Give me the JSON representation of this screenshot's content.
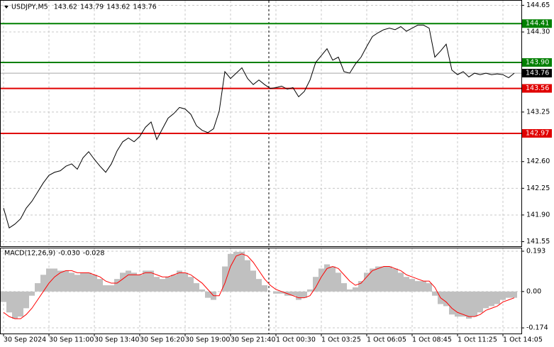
{
  "chart_data": [
    {
      "type": "line",
      "title": "USDJPY,M5",
      "ohlc": [
        143.62,
        143.79,
        143.62,
        143.76
      ],
      "color": "#000000",
      "ylim": [
        141.49,
        144.71
      ],
      "yticks": [
        144.65,
        {
          "value": 144.3,
          "label": "144.30"
        },
        143.25,
        {
          "value": 142.6,
          "label": "142.60"
        },
        142.25,
        {
          "value": 141.9,
          "label": "141.90"
        },
        141.55
      ],
      "grid": true,
      "categories": [
        "30 Sep 2024",
        null,
        null,
        null,
        null,
        null,
        null,
        null,
        "30 Sep 11:00",
        null,
        null,
        null,
        null,
        null,
        null,
        null,
        "30 Sep 13:40",
        null,
        null,
        null,
        null,
        null,
        null,
        null,
        "30 Sep 16:20",
        null,
        null,
        null,
        null,
        null,
        null,
        null,
        "30 Sep 19:00",
        null,
        null,
        null,
        null,
        null,
        null,
        null,
        "30 Sep 21:40",
        null,
        null,
        null,
        null,
        null,
        null,
        null,
        "1 Oct 00:30",
        null,
        null,
        null,
        null,
        null,
        null,
        null,
        "1 Oct 03:25",
        null,
        null,
        null,
        null,
        null,
        null,
        null,
        "1 Oct 06:05",
        null,
        null,
        null,
        null,
        null,
        null,
        null,
        "1 Oct 08:45",
        null,
        null,
        null,
        null,
        null,
        null,
        null,
        "1 Oct 11:25",
        null,
        null,
        null,
        null,
        null,
        null,
        null,
        "1 Oct 14:05",
        null,
        null
      ],
      "values": [
        141.99,
        141.73,
        141.78,
        141.85,
        141.99,
        142.08,
        142.2,
        142.32,
        142.42,
        142.46,
        142.48,
        142.54,
        142.57,
        142.5,
        142.65,
        142.73,
        142.63,
        142.54,
        142.46,
        142.57,
        142.74,
        142.86,
        142.91,
        142.86,
        142.93,
        143.05,
        143.12,
        142.89,
        143.03,
        143.17,
        143.23,
        143.31,
        143.29,
        143.22,
        143.07,
        143.01,
        142.98,
        143.03,
        143.26,
        143.78,
        143.69,
        143.76,
        143.83,
        143.69,
        143.61,
        143.67,
        143.61,
        143.56,
        143.57,
        143.59,
        143.55,
        143.57,
        143.45,
        143.52,
        143.67,
        143.9,
        143.99,
        144.08,
        143.93,
        143.97,
        143.78,
        143.76,
        143.88,
        143.97,
        144.11,
        144.24,
        144.29,
        144.33,
        144.35,
        144.33,
        144.37,
        144.31,
        144.35,
        144.39,
        144.39,
        144.35,
        143.97,
        144.05,
        144.14,
        143.8,
        143.74,
        143.78,
        143.71,
        143.76,
        143.74,
        143.76,
        143.74,
        143.75,
        143.74,
        143.7,
        143.76
      ],
      "levels": [
        {
          "value": 144.41,
          "color": "#008000"
        },
        {
          "value": 143.9,
          "label": "143.90",
          "color": "#008000"
        },
        {
          "value": 143.76,
          "color": "#a8a8a8",
          "box": "#000000"
        },
        {
          "value": 143.56,
          "color": "#e00000"
        },
        {
          "value": 142.97,
          "color": "#e00000"
        }
      ]
    },
    {
      "type": "macd",
      "title": "MACD(12,26,9)",
      "ylim": [
        -0.201,
        0.21
      ],
      "yticks": [
        0.193,
        {
          "value": 0,
          "label": "0.00"
        },
        -0.174
      ],
      "series": [
        {
          "type": "bar",
          "color": "#c0c0c0",
          "current": {
            "value": -0.03,
            "label": "-0.030"
          },
          "values": [
            -0.05,
            -0.1,
            -0.13,
            -0.12,
            -0.08,
            -0.02,
            0.04,
            0.08,
            0.11,
            0.11,
            0.1,
            0.1,
            0.09,
            0.08,
            0.09,
            0.09,
            0.08,
            0.06,
            0.03,
            0.03,
            0.06,
            0.09,
            0.1,
            0.09,
            0.08,
            0.1,
            0.1,
            0.07,
            0.06,
            0.07,
            0.08,
            0.1,
            0.09,
            0.07,
            0.04,
            0.01,
            -0.03,
            -0.04,
            0.0,
            0.12,
            0.18,
            0.19,
            0.19,
            0.15,
            0.1,
            0.06,
            0.03,
            0.0,
            -0.01,
            -0.01,
            -0.02,
            -0.02,
            -0.04,
            -0.03,
            0.01,
            0.07,
            0.11,
            0.13,
            0.12,
            0.09,
            0.04,
            0.01,
            0.02,
            0.05,
            0.09,
            0.11,
            0.12,
            0.12,
            0.12,
            0.11,
            0.09,
            0.07,
            0.06,
            0.05,
            0.05,
            0.04,
            -0.02,
            -0.06,
            -0.07,
            -0.11,
            -0.12,
            -0.12,
            -0.13,
            -0.12,
            -0.1,
            -0.08,
            -0.07,
            -0.06,
            -0.04,
            -0.03,
            -0.03
          ]
        },
        {
          "type": "line",
          "color": "#ff0000",
          "current": {
            "value": -0.028,
            "label": "-0.028"
          },
          "values": [
            -0.1,
            -0.12,
            -0.13,
            -0.13,
            -0.11,
            -0.08,
            -0.04,
            0.0,
            0.04,
            0.07,
            0.09,
            0.1,
            0.1,
            0.09,
            0.09,
            0.09,
            0.08,
            0.07,
            0.05,
            0.04,
            0.04,
            0.06,
            0.08,
            0.08,
            0.08,
            0.09,
            0.09,
            0.08,
            0.07,
            0.07,
            0.08,
            0.09,
            0.09,
            0.08,
            0.06,
            0.04,
            0.01,
            -0.02,
            -0.02,
            0.04,
            0.12,
            0.17,
            0.18,
            0.17,
            0.14,
            0.1,
            0.06,
            0.03,
            0.01,
            0.0,
            -0.01,
            -0.02,
            -0.03,
            -0.03,
            -0.02,
            0.02,
            0.07,
            0.11,
            0.12,
            0.11,
            0.08,
            0.05,
            0.03,
            0.04,
            0.07,
            0.1,
            0.11,
            0.12,
            0.12,
            0.11,
            0.1,
            0.08,
            0.07,
            0.06,
            0.05,
            0.05,
            0.02,
            -0.03,
            -0.05,
            -0.08,
            -0.1,
            -0.11,
            -0.12,
            -0.12,
            -0.11,
            -0.09,
            -0.08,
            -0.07,
            -0.05,
            -0.04,
            -0.03
          ]
        }
      ]
    }
  ]
}
